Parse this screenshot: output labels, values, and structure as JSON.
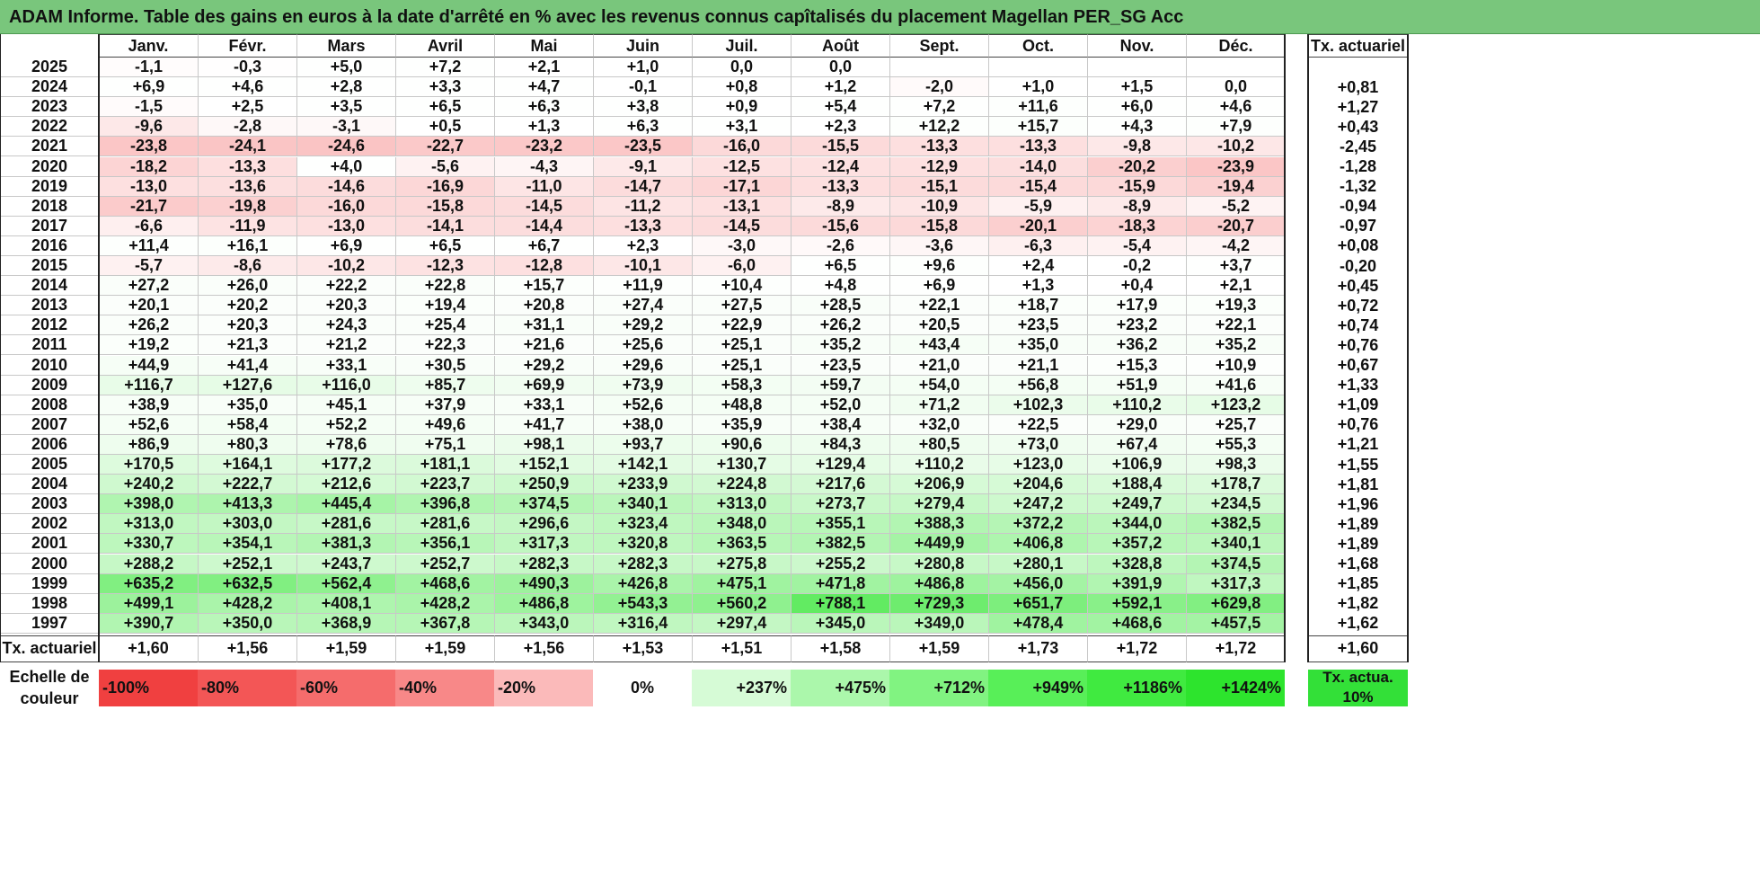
{
  "title": "ADAM Informe. Table des gains en euros à la date d'arrêté en % avec les revenus connus capîtalisés du placement Magellan PER_SG Acc",
  "chart_data": {
    "type": "table",
    "columns": [
      "Janv.",
      "Févr.",
      "Mars",
      "Avril",
      "Mai",
      "Juin",
      "Juil.",
      "Août",
      "Sept.",
      "Oct.",
      "Nov.",
      "Déc."
    ],
    "actuarial_header": "Tx. actuariel",
    "rows": [
      {
        "year": "2025",
        "values": [
          "-1,1",
          "-0,3",
          "+5,0",
          "+7,2",
          "+2,1",
          "+1,0",
          "0,0",
          "0,0",
          "",
          "",
          "",
          ""
        ],
        "rate": ""
      },
      {
        "year": "2024",
        "values": [
          "+6,9",
          "+4,6",
          "+2,8",
          "+3,3",
          "+4,7",
          "-0,1",
          "+0,8",
          "+1,2",
          "-2,0",
          "+1,0",
          "+1,5",
          "0,0"
        ],
        "rate": "+0,81"
      },
      {
        "year": "2023",
        "values": [
          "-1,5",
          "+2,5",
          "+3,5",
          "+6,5",
          "+6,3",
          "+3,8",
          "+0,9",
          "+5,4",
          "+7,2",
          "+11,6",
          "+6,0",
          "+4,6"
        ],
        "rate": "+1,27"
      },
      {
        "year": "2022",
        "values": [
          "-9,6",
          "-2,8",
          "-3,1",
          "+0,5",
          "+1,3",
          "+6,3",
          "+3,1",
          "+2,3",
          "+12,2",
          "+15,7",
          "+4,3",
          "+7,9"
        ],
        "rate": "+0,43"
      },
      {
        "year": "2021",
        "values": [
          "-23,8",
          "-24,1",
          "-24,6",
          "-22,7",
          "-23,2",
          "-23,5",
          "-16,0",
          "-15,5",
          "-13,3",
          "-13,3",
          "-9,8",
          "-10,2"
        ],
        "rate": "-2,45"
      },
      {
        "year": "2020",
        "values": [
          "-18,2",
          "-13,3",
          "+4,0",
          "-5,6",
          "-4,3",
          "-9,1",
          "-12,5",
          "-12,4",
          "-12,9",
          "-14,0",
          "-20,2",
          "-23,9"
        ],
        "rate": "-1,28"
      },
      {
        "year": "2019",
        "values": [
          "-13,0",
          "-13,6",
          "-14,6",
          "-16,9",
          "-11,0",
          "-14,7",
          "-17,1",
          "-13,3",
          "-15,1",
          "-15,4",
          "-15,9",
          "-19,4"
        ],
        "rate": "-1,32"
      },
      {
        "year": "2018",
        "values": [
          "-21,7",
          "-19,8",
          "-16,0",
          "-15,8",
          "-14,5",
          "-11,2",
          "-13,1",
          "-8,9",
          "-10,9",
          "-5,9",
          "-8,9",
          "-5,2"
        ],
        "rate": "-0,94"
      },
      {
        "year": "2017",
        "values": [
          "-6,6",
          "-11,9",
          "-13,0",
          "-14,1",
          "-14,4",
          "-13,3",
          "-14,5",
          "-15,6",
          "-15,8",
          "-20,1",
          "-18,3",
          "-20,7"
        ],
        "rate": "-0,97"
      },
      {
        "year": "2016",
        "values": [
          "+11,4",
          "+16,1",
          "+6,9",
          "+6,5",
          "+6,7",
          "+2,3",
          "-3,0",
          "-2,6",
          "-3,6",
          "-6,3",
          "-5,4",
          "-4,2"
        ],
        "rate": "+0,08"
      },
      {
        "year": "2015",
        "values": [
          "-5,7",
          "-8,6",
          "-10,2",
          "-12,3",
          "-12,8",
          "-10,1",
          "-6,0",
          "+6,5",
          "+9,6",
          "+2,4",
          "-0,2",
          "+3,7"
        ],
        "rate": "-0,20"
      },
      {
        "year": "2014",
        "values": [
          "+27,2",
          "+26,0",
          "+22,2",
          "+22,8",
          "+15,7",
          "+11,9",
          "+10,4",
          "+4,8",
          "+6,9",
          "+1,3",
          "+0,4",
          "+2,1"
        ],
        "rate": "+0,45"
      },
      {
        "year": "2013",
        "values": [
          "+20,1",
          "+20,2",
          "+20,3",
          "+19,4",
          "+20,8",
          "+27,4",
          "+27,5",
          "+28,5",
          "+22,1",
          "+18,7",
          "+17,9",
          "+19,3"
        ],
        "rate": "+0,72"
      },
      {
        "year": "2012",
        "values": [
          "+26,2",
          "+20,3",
          "+24,3",
          "+25,4",
          "+31,1",
          "+29,2",
          "+22,9",
          "+26,2",
          "+20,5",
          "+23,5",
          "+23,2",
          "+22,1"
        ],
        "rate": "+0,74"
      },
      {
        "year": "2011",
        "values": [
          "+19,2",
          "+21,3",
          "+21,2",
          "+22,3",
          "+21,6",
          "+25,6",
          "+25,1",
          "+35,2",
          "+43,4",
          "+35,0",
          "+36,2",
          "+35,2"
        ],
        "rate": "+0,76"
      },
      {
        "year": "2010",
        "values": [
          "+44,9",
          "+41,4",
          "+33,1",
          "+30,5",
          "+29,2",
          "+29,6",
          "+25,1",
          "+23,5",
          "+21,0",
          "+21,1",
          "+15,3",
          "+10,9"
        ],
        "rate": "+0,67"
      },
      {
        "year": "2009",
        "values": [
          "+116,7",
          "+127,6",
          "+116,0",
          "+85,7",
          "+69,9",
          "+73,9",
          "+58,3",
          "+59,7",
          "+54,0",
          "+56,8",
          "+51,9",
          "+41,6"
        ],
        "rate": "+1,33"
      },
      {
        "year": "2008",
        "values": [
          "+38,9",
          "+35,0",
          "+45,1",
          "+37,9",
          "+33,1",
          "+52,6",
          "+48,8",
          "+52,0",
          "+71,2",
          "+102,3",
          "+110,2",
          "+123,2"
        ],
        "rate": "+1,09"
      },
      {
        "year": "2007",
        "values": [
          "+52,6",
          "+58,4",
          "+52,2",
          "+49,6",
          "+41,7",
          "+38,0",
          "+35,9",
          "+38,4",
          "+32,0",
          "+22,5",
          "+29,0",
          "+25,7"
        ],
        "rate": "+0,76"
      },
      {
        "year": "2006",
        "values": [
          "+86,9",
          "+80,3",
          "+78,6",
          "+75,1",
          "+98,1",
          "+93,7",
          "+90,6",
          "+84,3",
          "+80,5",
          "+73,0",
          "+67,4",
          "+55,3"
        ],
        "rate": "+1,21"
      },
      {
        "year": "2005",
        "values": [
          "+170,5",
          "+164,1",
          "+177,2",
          "+181,1",
          "+152,1",
          "+142,1",
          "+130,7",
          "+129,4",
          "+110,2",
          "+123,0",
          "+106,9",
          "+98,3"
        ],
        "rate": "+1,55"
      },
      {
        "year": "2004",
        "values": [
          "+240,2",
          "+222,7",
          "+212,6",
          "+223,7",
          "+250,9",
          "+233,9",
          "+224,8",
          "+217,6",
          "+206,9",
          "+204,6",
          "+188,4",
          "+178,7"
        ],
        "rate": "+1,81"
      },
      {
        "year": "2003",
        "values": [
          "+398,0",
          "+413,3",
          "+445,4",
          "+396,8",
          "+374,5",
          "+340,1",
          "+313,0",
          "+273,7",
          "+279,4",
          "+247,2",
          "+249,7",
          "+234,5"
        ],
        "rate": "+1,96"
      },
      {
        "year": "2002",
        "values": [
          "+313,0",
          "+303,0",
          "+281,6",
          "+281,6",
          "+296,6",
          "+323,4",
          "+348,0",
          "+355,1",
          "+388,3",
          "+372,2",
          "+344,0",
          "+382,5"
        ],
        "rate": "+1,89"
      },
      {
        "year": "2001",
        "values": [
          "+330,7",
          "+354,1",
          "+381,3",
          "+356,1",
          "+317,3",
          "+320,8",
          "+363,5",
          "+382,5",
          "+449,9",
          "+406,8",
          "+357,2",
          "+340,1"
        ],
        "rate": "+1,89"
      },
      {
        "year": "2000",
        "values": [
          "+288,2",
          "+252,1",
          "+243,7",
          "+252,7",
          "+282,3",
          "+282,3",
          "+275,8",
          "+255,2",
          "+280,8",
          "+280,1",
          "+328,8",
          "+374,5"
        ],
        "rate": "+1,68"
      },
      {
        "year": "1999",
        "values": [
          "+635,2",
          "+632,5",
          "+562,4",
          "+468,6",
          "+490,3",
          "+426,8",
          "+475,1",
          "+471,8",
          "+486,8",
          "+456,0",
          "+391,9",
          "+317,3"
        ],
        "rate": "+1,85"
      },
      {
        "year": "1998",
        "values": [
          "+499,1",
          "+428,2",
          "+408,1",
          "+428,2",
          "+486,8",
          "+543,3",
          "+560,2",
          "+788,1",
          "+729,3",
          "+651,7",
          "+592,1",
          "+629,8"
        ],
        "rate": "+1,82"
      },
      {
        "year": "1997",
        "values": [
          "+390,7",
          "+350,0",
          "+368,9",
          "+367,8",
          "+343,0",
          "+316,4",
          "+297,4",
          "+345,0",
          "+349,0",
          "+478,4",
          "+468,6",
          "+457,5"
        ],
        "rate": "+1,62"
      }
    ],
    "footer": {
      "label": "Tx. actuariel",
      "values": [
        "+1,60",
        "+1,56",
        "+1,59",
        "+1,59",
        "+1,56",
        "+1,53",
        "+1,51",
        "+1,58",
        "+1,59",
        "+1,73",
        "+1,72",
        "+1,72"
      ],
      "rate": "+1,60"
    },
    "color_scale": {
      "label": "Echelle de couleur",
      "steps": [
        {
          "label": "-100%",
          "color": "#f04040"
        },
        {
          "label": "-80%",
          "color": "#f35656"
        },
        {
          "label": "-60%",
          "color": "#f56c6c"
        },
        {
          "label": "-40%",
          "color": "#f88888"
        },
        {
          "label": "-20%",
          "color": "#fbbaba"
        },
        {
          "label": "0%",
          "color": "#ffffff"
        },
        {
          "label": "+237%",
          "color": "#d6fbd6"
        },
        {
          "label": "+475%",
          "color": "#abf7ab"
        },
        {
          "label": "+712%",
          "color": "#81f381"
        },
        {
          "label": "+949%",
          "color": "#58ef58"
        },
        {
          "label": "+1186%",
          "color": "#40ea40"
        },
        {
          "label": "+1424%",
          "color": "#2de42d"
        }
      ],
      "reference_label": "Tx. actua. 10%",
      "reference_color": "#33e038"
    },
    "negative_color": "#f04040",
    "positive_color": "#2de42d"
  }
}
